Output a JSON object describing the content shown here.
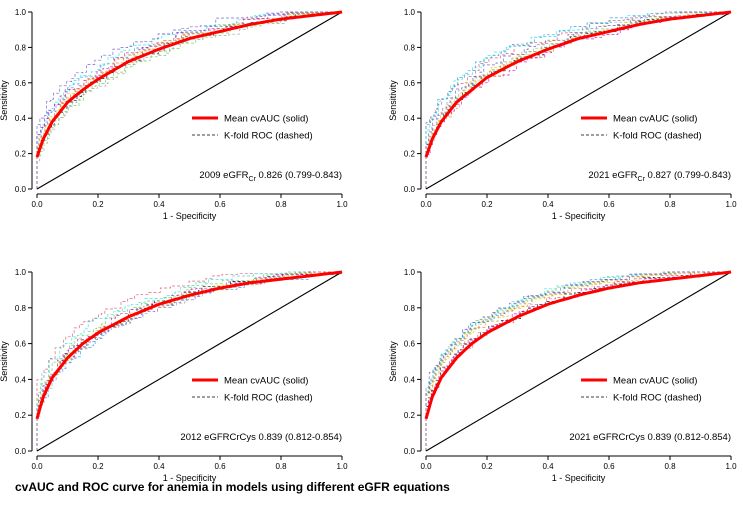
{
  "figure_caption": "cvAUC and ROC curve for anemia in models using different eGFR equations",
  "chart_data": [
    {
      "type": "line",
      "panel": "top-left",
      "xlabel": "1 - Specificity",
      "ylabel": "Sensitivity",
      "xlim": [
        0,
        1
      ],
      "ylim": [
        0,
        1
      ],
      "xticks": [
        "0.0",
        "0.2",
        "0.4",
        "0.6",
        "0.8",
        "1.0"
      ],
      "yticks": [
        "0.0",
        "0.2",
        "0.4",
        "0.6",
        "0.8",
        "1.0"
      ],
      "legend": [
        {
          "label": "Mean cvAUC (solid)",
          "style": "solid",
          "color": "#ff0000"
        },
        {
          "label": "K-fold ROC (dashed)",
          "style": "dashed",
          "color": "#000000"
        }
      ],
      "legend_position": "bottom-right",
      "annotation": {
        "prefix": "2009 eGFR",
        "subscript": "Cr",
        "rest": " 0.826 (0.799-0.843)"
      },
      "mean_curve": {
        "x": [
          0,
          0.02,
          0.05,
          0.1,
          0.15,
          0.2,
          0.3,
          0.4,
          0.5,
          0.6,
          0.7,
          0.8,
          0.9,
          1.0
        ],
        "y": [
          0.18,
          0.28,
          0.38,
          0.49,
          0.56,
          0.62,
          0.72,
          0.79,
          0.85,
          0.89,
          0.93,
          0.96,
          0.98,
          1.0
        ]
      },
      "diagonal": [
        [
          0,
          0
        ],
        [
          1,
          1
        ]
      ]
    },
    {
      "type": "line",
      "panel": "top-right",
      "xlabel": "1 - Specificity",
      "ylabel": "Sensitivity",
      "xlim": [
        0,
        1
      ],
      "ylim": [
        0,
        1
      ],
      "xticks": [
        "0.0",
        "0.2",
        "0.4",
        "0.6",
        "0.8",
        "1.0"
      ],
      "yticks": [
        "0.0",
        "0.2",
        "0.4",
        "0.6",
        "0.8",
        "1.0"
      ],
      "legend": [
        {
          "label": "Mean cvAUC (solid)",
          "style": "solid",
          "color": "#ff0000"
        },
        {
          "label": "K-fold ROC (dashed)",
          "style": "dashed",
          "color": "#000000"
        }
      ],
      "legend_position": "bottom-right",
      "annotation": {
        "prefix": "2021 eGFR",
        "subscript": "Cr",
        "rest": " 0.827 (0.799-0.843)"
      },
      "mean_curve": {
        "x": [
          0,
          0.02,
          0.05,
          0.1,
          0.15,
          0.2,
          0.3,
          0.4,
          0.5,
          0.6,
          0.7,
          0.8,
          0.9,
          1.0
        ],
        "y": [
          0.18,
          0.28,
          0.38,
          0.49,
          0.56,
          0.63,
          0.72,
          0.79,
          0.85,
          0.89,
          0.93,
          0.96,
          0.98,
          1.0
        ]
      },
      "diagonal": [
        [
          0,
          0
        ],
        [
          1,
          1
        ]
      ]
    },
    {
      "type": "line",
      "panel": "bottom-left",
      "xlabel": "1 - Specificity",
      "ylabel": "Sensitivity",
      "xlim": [
        0,
        1
      ],
      "ylim": [
        0,
        1
      ],
      "xticks": [
        "0.0",
        "0.2",
        "0.4",
        "0.6",
        "0.8",
        "1.0"
      ],
      "yticks": [
        "0.0",
        "0.2",
        "0.4",
        "0.6",
        "0.8",
        "1.0"
      ],
      "legend": [
        {
          "label": "Mean cvAUC (solid)",
          "style": "solid",
          "color": "#ff0000"
        },
        {
          "label": "K-fold ROC (dashed)",
          "style": "dashed",
          "color": "#000000"
        }
      ],
      "legend_position": "bottom-right",
      "annotation": {
        "prefix": "2012 eGFRCrCys 0.839 (0.812-0.854)",
        "subscript": "",
        "rest": ""
      },
      "mean_curve": {
        "x": [
          0,
          0.02,
          0.05,
          0.1,
          0.15,
          0.2,
          0.3,
          0.4,
          0.5,
          0.6,
          0.7,
          0.8,
          0.9,
          1.0
        ],
        "y": [
          0.18,
          0.3,
          0.41,
          0.52,
          0.6,
          0.66,
          0.75,
          0.82,
          0.87,
          0.91,
          0.94,
          0.96,
          0.98,
          1.0
        ]
      },
      "diagonal": [
        [
          0,
          0
        ],
        [
          1,
          1
        ]
      ]
    },
    {
      "type": "line",
      "panel": "bottom-right",
      "xlabel": "1 - Specificity",
      "ylabel": "Sensitivity",
      "xlim": [
        0,
        1
      ],
      "ylim": [
        0,
        1
      ],
      "xticks": [
        "0.0",
        "0.2",
        "0.4",
        "0.6",
        "0.8",
        "1.0"
      ],
      "yticks": [
        "0.0",
        "0.2",
        "0.4",
        "0.6",
        "0.8",
        "1.0"
      ],
      "legend": [
        {
          "label": "Mean cvAUC (solid)",
          "style": "solid",
          "color": "#ff0000"
        },
        {
          "label": "K-fold ROC (dashed)",
          "style": "dashed",
          "color": "#000000"
        }
      ],
      "legend_position": "bottom-right",
      "annotation": {
        "prefix": "2021 eGFRCrCys 0.839 (0.812-0.854)",
        "subscript": "",
        "rest": ""
      },
      "mean_curve": {
        "x": [
          0,
          0.02,
          0.05,
          0.1,
          0.15,
          0.2,
          0.3,
          0.4,
          0.5,
          0.6,
          0.7,
          0.8,
          0.9,
          1.0
        ],
        "y": [
          0.18,
          0.3,
          0.41,
          0.52,
          0.6,
          0.66,
          0.75,
          0.82,
          0.87,
          0.91,
          0.94,
          0.96,
          0.98,
          1.0
        ]
      },
      "diagonal": [
        [
          0,
          0
        ],
        [
          1,
          1
        ]
      ]
    }
  ],
  "kfold_colors": [
    "#000000",
    "#df536b",
    "#61d04f",
    "#2297e6",
    "#28e2e5",
    "#cd0bbc",
    "#f5c710",
    "#9e9e9e",
    "#e88a2d",
    "#6a5acd"
  ]
}
